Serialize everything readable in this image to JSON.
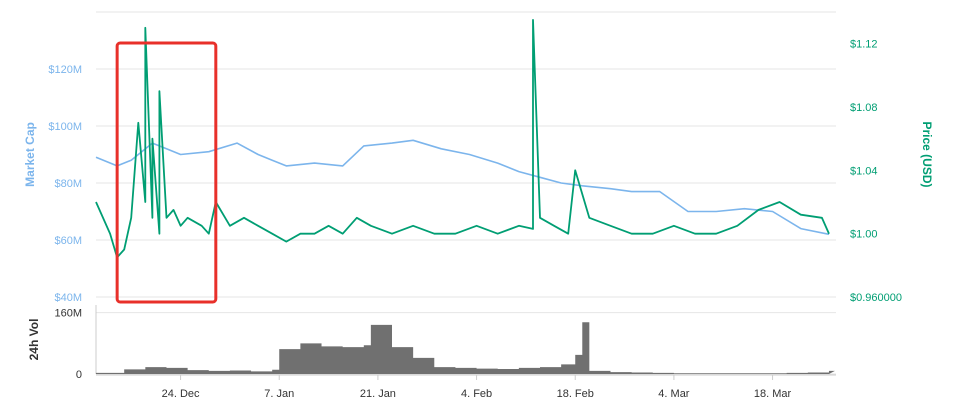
{
  "chart_data": {
    "type": "line",
    "colors": {
      "market_cap": "#7cb5ec",
      "price": "#009e73",
      "volume": "#707070",
      "grid": "#e6e6e6",
      "highlight_box": "#e8302a"
    },
    "grid": true,
    "x_axis": {
      "type": "date",
      "range": [
        "2017-12-12",
        "2018-03-27"
      ],
      "tick_labels": [
        {
          "date": "2017-12-24",
          "label": "24. Dec"
        },
        {
          "date": "2018-01-07",
          "label": "7. Jan"
        },
        {
          "date": "2018-01-21",
          "label": "21. Jan"
        },
        {
          "date": "2018-02-04",
          "label": "4. Feb"
        },
        {
          "date": "2018-02-18",
          "label": "18. Feb"
        },
        {
          "date": "2018-03-04",
          "label": "4. Mar"
        },
        {
          "date": "2018-03-18",
          "label": "18. Mar"
        }
      ]
    },
    "left_axis": {
      "title": "Market Cap",
      "ylim": [
        40000000,
        140000000
      ],
      "ticks": [
        {
          "value": 40000000,
          "label": "$40M"
        },
        {
          "value": 60000000,
          "label": "$60M"
        },
        {
          "value": 80000000,
          "label": "$80M"
        },
        {
          "value": 100000000,
          "label": "$100M"
        },
        {
          "value": 120000000,
          "label": "$120M"
        }
      ]
    },
    "right_axis": {
      "title": "Price (USD)",
      "ylim": [
        0.96,
        1.14
      ],
      "ticks": [
        {
          "value": 0.96,
          "label": "$0.960000"
        },
        {
          "value": 1.0,
          "label": "$1.00"
        },
        {
          "value": 1.04,
          "label": "$1.04"
        },
        {
          "value": 1.08,
          "label": "$1.08"
        },
        {
          "value": 1.12,
          "label": "$1.12"
        }
      ]
    },
    "volume_axis": {
      "title": "24h Vol",
      "ylim": [
        0,
        180000000
      ],
      "ticks": [
        {
          "value": 0,
          "label": "0"
        },
        {
          "value": 160000000,
          "label": "160M"
        }
      ]
    },
    "series": [
      {
        "name": "Market Cap",
        "axis": "left",
        "x": [
          "2017-12-12",
          "2017-12-15",
          "2017-12-17",
          "2017-12-20",
          "2017-12-22",
          "2017-12-24",
          "2017-12-28",
          "2018-01-01",
          "2018-01-04",
          "2018-01-06",
          "2018-01-08",
          "2018-01-12",
          "2018-01-16",
          "2018-01-19",
          "2018-01-23",
          "2018-01-26",
          "2018-01-30",
          "2018-02-03",
          "2018-02-07",
          "2018-02-10",
          "2018-02-13",
          "2018-02-16",
          "2018-02-19",
          "2018-02-23",
          "2018-02-26",
          "2018-03-02",
          "2018-03-06",
          "2018-03-10",
          "2018-03-14",
          "2018-03-18",
          "2018-03-22",
          "2018-03-26"
        ],
        "values": [
          89000000,
          86000000,
          88000000,
          94000000,
          92000000,
          90000000,
          91000000,
          94000000,
          90000000,
          88000000,
          86000000,
          87000000,
          86000000,
          93000000,
          94000000,
          95000000,
          92000000,
          90000000,
          87000000,
          84000000,
          82000000,
          80000000,
          79000000,
          78000000,
          77000000,
          77000000,
          70000000,
          70000000,
          71000000,
          70000000,
          64000000,
          62000000
        ]
      },
      {
        "name": "Price",
        "axis": "right",
        "x": [
          "2017-12-12",
          "2017-12-13",
          "2017-12-14",
          "2017-12-15",
          "2017-12-16",
          "2017-12-17",
          "2017-12-18",
          "2017-12-19",
          "2017-12-19",
          "2017-12-20",
          "2017-12-20",
          "2017-12-21",
          "2017-12-21",
          "2017-12-22",
          "2017-12-23",
          "2017-12-24",
          "2017-12-25",
          "2017-12-27",
          "2017-12-28",
          "2017-12-29",
          "2017-12-31",
          "2018-01-02",
          "2018-01-04",
          "2018-01-06",
          "2018-01-08",
          "2018-01-10",
          "2018-01-12",
          "2018-01-14",
          "2018-01-16",
          "2018-01-18",
          "2018-01-20",
          "2018-01-23",
          "2018-01-26",
          "2018-01-29",
          "2018-02-01",
          "2018-02-04",
          "2018-02-07",
          "2018-02-10",
          "2018-02-12",
          "2018-02-12",
          "2018-02-13",
          "2018-02-15",
          "2018-02-17",
          "2018-02-18",
          "2018-02-20",
          "2018-02-23",
          "2018-02-26",
          "2018-03-01",
          "2018-03-04",
          "2018-03-07",
          "2018-03-10",
          "2018-03-13",
          "2018-03-16",
          "2018-03-19",
          "2018-03-22",
          "2018-03-25",
          "2018-03-26"
        ],
        "values": [
          1.02,
          1.01,
          1.0,
          0.985,
          0.99,
          1.01,
          1.07,
          1.02,
          1.13,
          1.01,
          1.06,
          1.0,
          1.09,
          1.01,
          1.015,
          1.005,
          1.01,
          1.005,
          1.0,
          1.02,
          1.005,
          1.01,
          1.005,
          1.0,
          0.995,
          1.0,
          1.0,
          1.005,
          1.0,
          1.01,
          1.005,
          1.0,
          1.005,
          1.0,
          1.0,
          1.005,
          1.0,
          1.005,
          1.003,
          1.135,
          1.01,
          1.005,
          1.0,
          1.04,
          1.01,
          1.005,
          1.0,
          1.0,
          1.005,
          1.0,
          1.0,
          1.005,
          1.015,
          1.02,
          1.012,
          1.01,
          1.0
        ]
      },
      {
        "name": "24h Vol",
        "axis": "volume",
        "x": [
          "2017-12-12",
          "2017-12-16",
          "2017-12-19",
          "2017-12-22",
          "2017-12-25",
          "2017-12-28",
          "2017-12-31",
          "2018-01-03",
          "2018-01-06",
          "2018-01-07",
          "2018-01-10",
          "2018-01-13",
          "2018-01-16",
          "2018-01-19",
          "2018-01-20",
          "2018-01-23",
          "2018-01-26",
          "2018-01-29",
          "2018-02-01",
          "2018-02-04",
          "2018-02-07",
          "2018-02-10",
          "2018-02-13",
          "2018-02-16",
          "2018-02-18",
          "2018-02-19",
          "2018-02-20",
          "2018-02-23",
          "2018-02-26",
          "2018-03-01",
          "2018-03-04",
          "2018-03-08",
          "2018-03-12",
          "2018-03-16",
          "2018-03-20",
          "2018-03-23",
          "2018-03-26"
        ],
        "values": [
          3000000,
          12000000,
          18000000,
          16000000,
          10000000,
          8000000,
          9000000,
          7000000,
          11000000,
          65000000,
          80000000,
          72000000,
          70000000,
          75000000,
          128000000,
          70000000,
          42000000,
          18000000,
          16000000,
          14000000,
          13000000,
          16000000,
          18000000,
          25000000,
          50000000,
          135000000,
          8000000,
          5000000,
          4000000,
          3000000,
          2000000,
          2000000,
          2000000,
          2000000,
          3000000,
          4000000,
          8000000
        ]
      }
    ],
    "annotation_box": {
      "x_range": [
        "2017-12-15",
        "2017-12-29"
      ],
      "description_only": "red rectangle highlight"
    }
  }
}
